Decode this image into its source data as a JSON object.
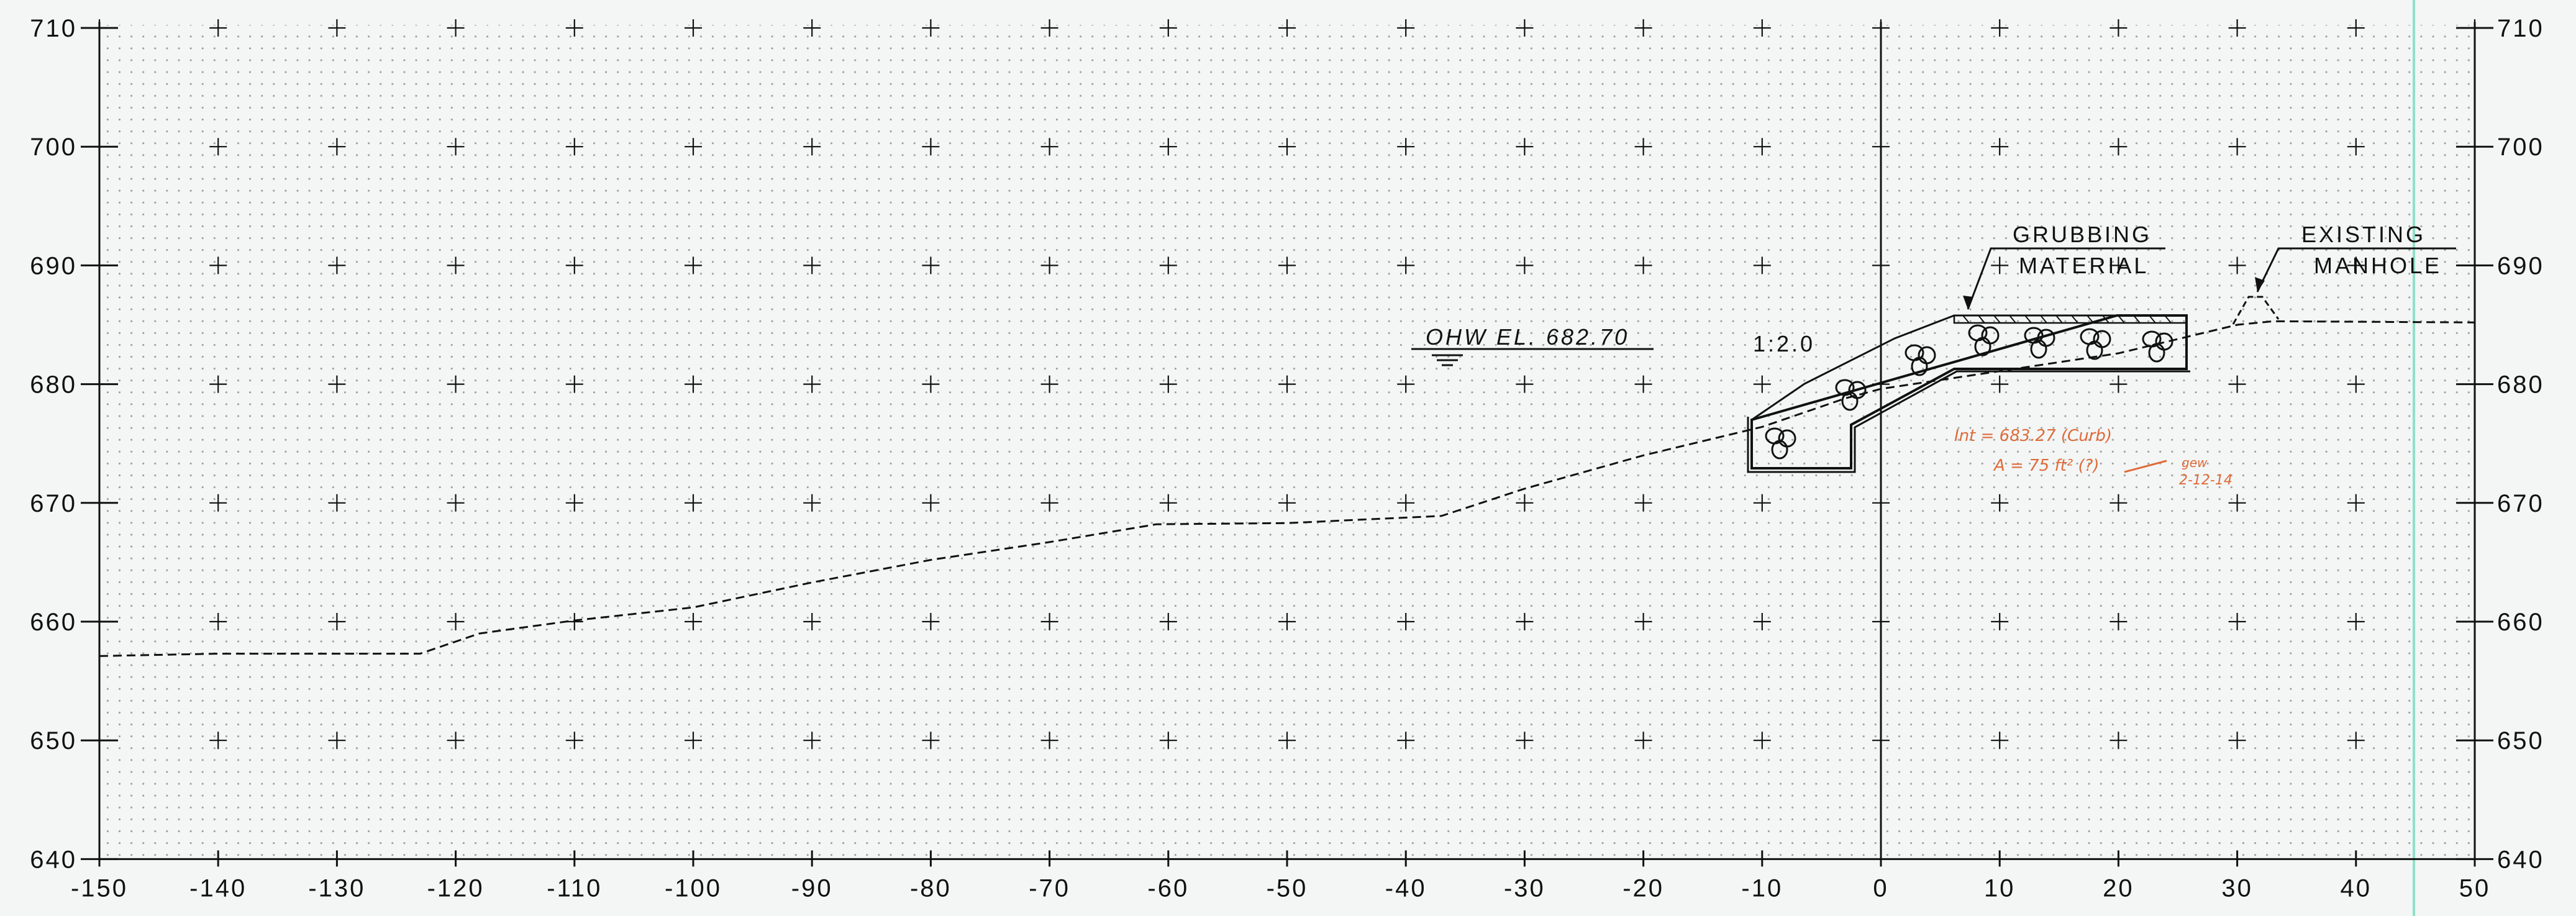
{
  "grid": {
    "x_labels": [
      "-150",
      "-140",
      "-130",
      "-120",
      "-110",
      "-100",
      "-90",
      "-80",
      "-70",
      "-60",
      "-50",
      "-40",
      "-30",
      "-20",
      "-10",
      "0",
      "10",
      "20",
      "30",
      "40",
      "50"
    ],
    "y_labels": [
      "710",
      "700",
      "690",
      "680",
      "670",
      "660",
      "650",
      "640"
    ]
  },
  "profile": {
    "points": [
      [
        -150,
        657.1
      ],
      [
        -140,
        657.3
      ],
      [
        -123,
        657.3
      ],
      [
        -118,
        659.0
      ],
      [
        -110,
        660.1
      ],
      [
        -100,
        661.2
      ],
      [
        -90,
        663.3
      ],
      [
        -80,
        665.2
      ],
      [
        -70,
        666.7
      ],
      [
        -61,
        668.2
      ],
      [
        -50,
        668.3
      ],
      [
        -37,
        668.9
      ],
      [
        -30,
        671.2
      ],
      [
        -20,
        674.0
      ],
      [
        -10,
        676.4
      ],
      [
        -3,
        678.8
      ],
      [
        0,
        679.6
      ],
      [
        10,
        681.1
      ],
      [
        20,
        682.6
      ],
      [
        30,
        685.0
      ],
      [
        33,
        685.3
      ],
      [
        50,
        685.2
      ]
    ]
  },
  "annotations": {
    "ohw": "OHW  EL. 682.70",
    "slope": "1:2.0",
    "grubbing_1": "GRUBBING",
    "grubbing_2": "MATERIAL",
    "existing_1": "EXISTING",
    "existing_2": "MANHOLE"
  },
  "handwritten": {
    "line1": "Int = 683.27  (Curb)",
    "line2": "A = 75 ft² (?)",
    "line3": "gew",
    "line4": "2-12-14"
  },
  "colors": {
    "ink": "#111111",
    "grid_dots": "#9aa19e",
    "handwriting": "#e06a3a",
    "background": "#f3f6f5",
    "margin_line": "#8fe0c8"
  }
}
